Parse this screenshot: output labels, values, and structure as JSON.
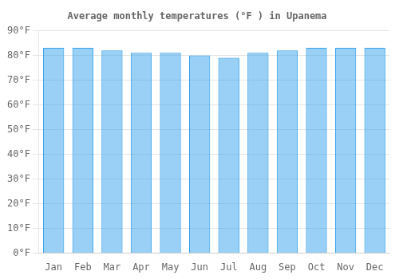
{
  "chart_data": {
    "type": "bar",
    "title": "Average monthly temperatures (°F ) in Upanema",
    "categories": [
      "Jan",
      "Feb",
      "Mar",
      "Apr",
      "May",
      "Jun",
      "Jul",
      "Aug",
      "Sep",
      "Oct",
      "Nov",
      "Dec"
    ],
    "values": [
      83,
      83,
      82,
      81,
      81,
      80,
      79,
      81,
      82,
      83,
      83,
      83
    ],
    "ylim": [
      0,
      90
    ],
    "yticks": [
      {
        "value": 0,
        "label": "0°F"
      },
      {
        "value": 10,
        "label": "10°F"
      },
      {
        "value": 20,
        "label": "20°F"
      },
      {
        "value": 30,
        "label": "30°F"
      },
      {
        "value": 40,
        "label": "40°F"
      },
      {
        "value": 50,
        "label": "50°F"
      },
      {
        "value": 60,
        "label": "60°F"
      },
      {
        "value": 70,
        "label": "70°F"
      },
      {
        "value": 80,
        "label": "80°F"
      },
      {
        "value": 90,
        "label": "90°F"
      }
    ],
    "grid": true
  }
}
